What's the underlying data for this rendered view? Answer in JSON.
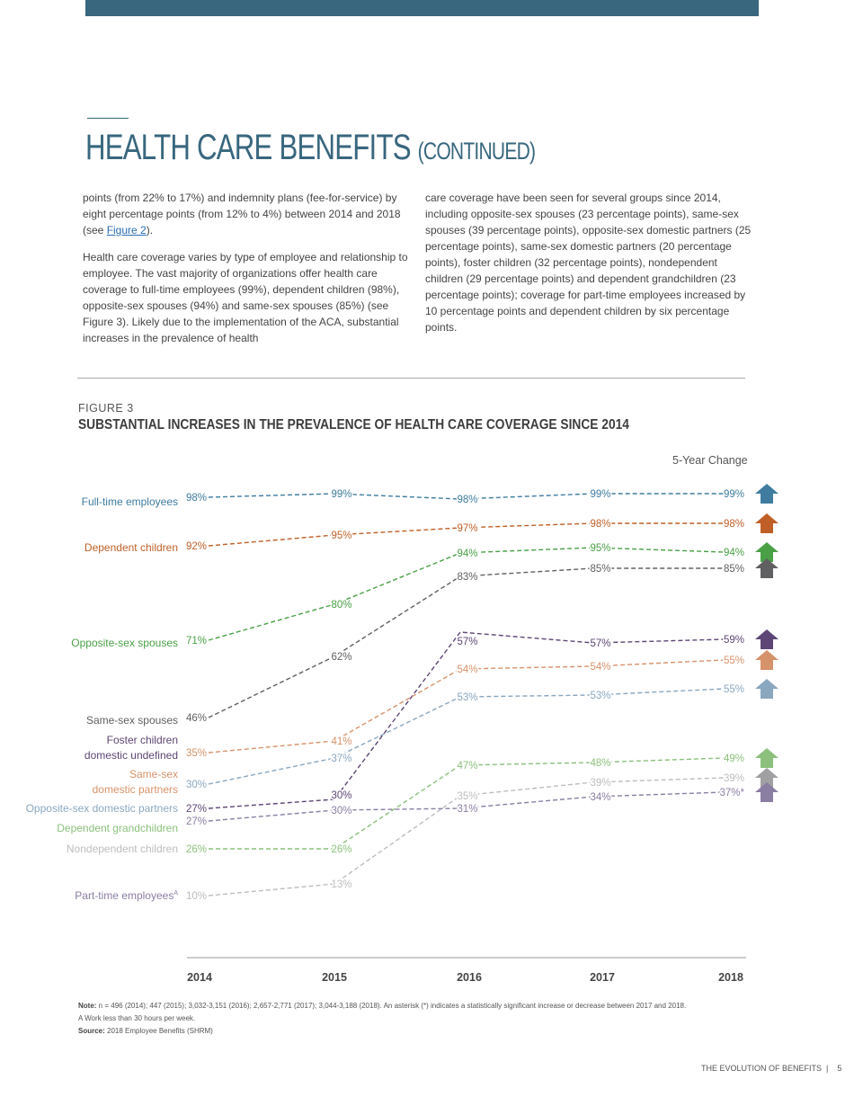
{
  "header": {
    "title": "HEALTH CARE BENEFITS",
    "title_suffix": "(CONTINUED)"
  },
  "body": {
    "col1_p1_before": "points (from 22% to 17%) and indemnity plans (fee-for-service) by eight percentage points (from 12% to 4%) between 2014 and 2018 (see ",
    "col1_p1_link": "Figure 2",
    "col1_p1_after": ").",
    "col1_p2": "Health care coverage varies by type of employee and relationship to employee. The vast majority of organizations offer health care coverage to full-time employees (99%), dependent children (98%), opposite-sex spouses (94%) and same-sex spouses (85%) (see Figure 3). Likely due to the implementation of the ACA, substantial increases in the prevalence of health",
    "col2_p1": "care coverage have been seen for several groups since 2014, including opposite-sex spouses (23 percentage points), same-sex spouses (39 percentage points), opposite-sex domestic partners (25 percentage points), same-sex domestic partners (20 percentage points), foster children (32 percentage points), nondependent children (29 percentage points) and dependent grandchildren (23 percentage points); coverage for part-time employees increased by 10 percentage points and dependent children by six percentage points."
  },
  "figure": {
    "label": "FIGURE 3",
    "title": "SUBSTANTIAL INCREASES IN THE PREVALENCE OF HEALTH CARE COVERAGE SINCE 2014",
    "change_header": "5-Year Change"
  },
  "chart_data": {
    "type": "line",
    "title": "SUBSTANTIAL INCREASES IN THE PREVALENCE OF HEALTH CARE COVERAGE SINCE 2014",
    "categories": [
      "2014",
      "2015",
      "2016",
      "2017",
      "2018"
    ],
    "unit": "%",
    "grid": false,
    "line_style": "dashed",
    "series": [
      {
        "name": "Full-time employees",
        "values": [
          98,
          99,
          98,
          99,
          99
        ],
        "color": "#3f7ca0",
        "change": "up"
      },
      {
        "name": "Dependent children",
        "values": [
          92,
          95,
          97,
          98,
          98
        ],
        "color": "#bf5f27",
        "change": "up"
      },
      {
        "name": "Opposite-sex spouses",
        "values": [
          71,
          80,
          94,
          95,
          94
        ],
        "color": "#4aa046",
        "change": "up"
      },
      {
        "name": "Same-sex spouses",
        "values": [
          46,
          62,
          83,
          85,
          85
        ],
        "color": "#606062",
        "change": "up"
      },
      {
        "name": "Foster children",
        "values": [
          27,
          30,
          57,
          57,
          59
        ],
        "color": "#5d4675",
        "change": "up"
      },
      {
        "name": "Same-sex domestic partners",
        "values": [
          35,
          41,
          54,
          54,
          55
        ],
        "color": "#d6926a",
        "change": "up"
      },
      {
        "name": "Opposite-sex domestic partners",
        "values": [
          30,
          37,
          53,
          53,
          55
        ],
        "color": "#8aa7c0",
        "change": "up"
      },
      {
        "name": "Dependent grandchildren",
        "values": [
          26,
          26,
          47,
          48,
          49
        ],
        "color": "#8cc07c",
        "change": "up"
      },
      {
        "name": "Nondependent children",
        "values": [
          10,
          13,
          35,
          39,
          39
        ],
        "color": "#bdbdc0",
        "change": "up",
        "arrow_color": "#a0a0a3"
      },
      {
        "name": "Part-time employees",
        "name_sup": "A",
        "values": [
          27,
          30,
          31,
          34,
          37
        ],
        "color": "#8b7ea3",
        "change": "up",
        "significant_2018": true
      }
    ],
    "significance_marker": "*"
  },
  "notes": {
    "note_label": "Note:",
    "note_text": " n = 496 (2014); 447 (2015); 3,032-3,151 (2016); 2,657-2,771 (2017); 3,044-3,188 (2018). An asterisk (*) indicates a statistically significant increase or decrease between 2017 and 2018.",
    "footnote": "A Work less than 30 hours per week.",
    "source_label": "Source:",
    "source_text": " 2018 Employee Benefits (SHRM)"
  },
  "footer": {
    "text": "THE EVOLUTION OF BENEFITS  |    5"
  }
}
